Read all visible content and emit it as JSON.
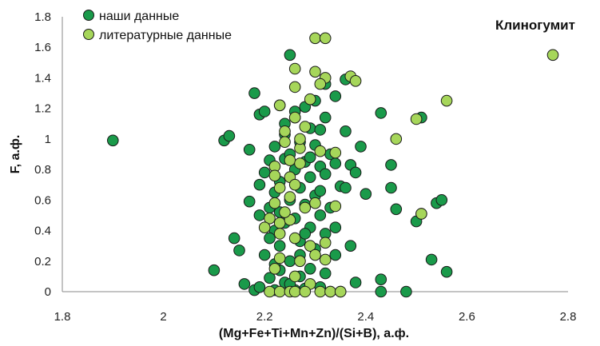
{
  "chart_data": {
    "type": "scatter",
    "title": "Клиногумит",
    "xlabel": "(Mg+Fe+Ti+Mn+Zn)/(Si+B), а.ф.",
    "ylabel": "F, а.ф.",
    "xlim": [
      1.8,
      2.8
    ],
    "ylim": [
      0,
      1.8
    ],
    "xticks": [
      "1.8",
      "2",
      "2.2",
      "2.4",
      "2.6",
      "2.8"
    ],
    "yticks": [
      "0",
      "0.2",
      "0.4",
      "0.6",
      "0.8",
      "1",
      "1.2",
      "1.4",
      "1.6",
      "1.8"
    ],
    "xtick_values": [
      1.8,
      2.0,
      2.2,
      2.4,
      2.6,
      2.8
    ],
    "ytick_values": [
      0,
      0.2,
      0.4,
      0.6,
      0.8,
      1.0,
      1.2,
      1.4,
      1.6,
      1.8
    ],
    "grid": false,
    "legend_position": "top-left",
    "colors": {
      "series1": "#1a9a4a",
      "series2": "#a6d65a",
      "outline": "#1a1a1a"
    },
    "series": [
      {
        "name": "наши данные",
        "points": [
          [
            1.9,
            0.99
          ],
          [
            2.1,
            0.14
          ],
          [
            2.12,
            0.99
          ],
          [
            2.13,
            1.02
          ],
          [
            2.14,
            0.35
          ],
          [
            2.15,
            0.27
          ],
          [
            2.16,
            0.05
          ],
          [
            2.17,
            0.59
          ],
          [
            2.17,
            0.93
          ],
          [
            2.18,
            1.3
          ],
          [
            2.18,
            0.01
          ],
          [
            2.19,
            1.16
          ],
          [
            2.19,
            0.5
          ],
          [
            2.19,
            0.03
          ],
          [
            2.2,
            0.78
          ],
          [
            2.2,
            0.24
          ],
          [
            2.2,
            1.18
          ],
          [
            2.21,
            0.86
          ],
          [
            2.21,
            0.09
          ],
          [
            2.21,
            0.55
          ],
          [
            2.22,
            0.95
          ],
          [
            2.22,
            0.65
          ],
          [
            2.22,
            0.4
          ],
          [
            2.22,
            0.01
          ],
          [
            2.23,
            1.22
          ],
          [
            2.23,
            0.72
          ],
          [
            2.23,
            0.3
          ],
          [
            2.23,
            0.14
          ],
          [
            2.24,
            1.03
          ],
          [
            2.24,
            0.87
          ],
          [
            2.24,
            0.45
          ],
          [
            2.24,
            0.06
          ],
          [
            2.25,
            1.55
          ],
          [
            2.25,
            0.9
          ],
          [
            2.25,
            0.6
          ],
          [
            2.25,
            0.2
          ],
          [
            2.26,
            1.14
          ],
          [
            2.26,
            0.8
          ],
          [
            2.26,
            0.48
          ],
          [
            2.26,
            0.01
          ],
          [
            2.27,
            0.98
          ],
          [
            2.27,
            0.68
          ],
          [
            2.27,
            0.33
          ],
          [
            2.27,
            0.1
          ],
          [
            2.28,
            1.21
          ],
          [
            2.28,
            0.85
          ],
          [
            2.28,
            0.57
          ],
          [
            2.28,
            0.02
          ],
          [
            2.29,
            1.07
          ],
          [
            2.29,
            0.75
          ],
          [
            2.29,
            0.42
          ],
          [
            2.29,
            0.15
          ],
          [
            2.3,
            1.25
          ],
          [
            2.3,
            0.96
          ],
          [
            2.3,
            0.63
          ],
          [
            2.3,
            0.28
          ],
          [
            2.31,
            1.06
          ],
          [
            2.31,
            0.82
          ],
          [
            2.31,
            0.5
          ],
          [
            2.31,
            0.03
          ],
          [
            2.32,
            1.14
          ],
          [
            2.32,
            0.77
          ],
          [
            2.32,
            0.38
          ],
          [
            2.32,
            0.12
          ],
          [
            2.33,
            0.9
          ],
          [
            2.33,
            0.55
          ],
          [
            2.33,
            0.0
          ],
          [
            2.34,
            1.28
          ],
          [
            2.34,
            0.84
          ],
          [
            2.34,
            0.42
          ],
          [
            2.35,
            0.69
          ],
          [
            2.35,
            0.0
          ],
          [
            2.36,
            1.05
          ],
          [
            2.36,
            0.68
          ],
          [
            2.37,
            0.83
          ],
          [
            2.37,
            0.3
          ],
          [
            2.38,
            0.78
          ],
          [
            2.38,
            0.06
          ],
          [
            2.39,
            0.95
          ],
          [
            2.4,
            0.64
          ],
          [
            2.43,
            1.17
          ],
          [
            2.43,
            0.08
          ],
          [
            2.43,
            0.0
          ],
          [
            2.45,
            0.83
          ],
          [
            2.45,
            0.68
          ],
          [
            2.46,
            0.54
          ],
          [
            2.48,
            0.0
          ],
          [
            2.5,
            0.46
          ],
          [
            2.51,
            1.14
          ],
          [
            2.51,
            0.51
          ],
          [
            2.53,
            0.21
          ],
          [
            2.54,
            0.58
          ],
          [
            2.55,
            0.6
          ],
          [
            2.56,
            0.13
          ],
          [
            2.32,
            1.36
          ],
          [
            2.36,
            1.39
          ],
          [
            2.24,
            1.1
          ],
          [
            2.21,
            0.35
          ],
          [
            2.27,
            0.24
          ],
          [
            2.29,
            0.88
          ],
          [
            2.34,
            0.24
          ],
          [
            2.23,
            0.52
          ],
          [
            2.19,
            0.7
          ],
          [
            2.25,
            0.05
          ],
          [
            2.28,
            0.38
          ],
          [
            2.31,
            0.66
          ],
          [
            2.26,
            1.18
          ],
          [
            2.22,
            0.18
          ]
        ]
      },
      {
        "name": "литературные данные",
        "points": [
          [
            2.3,
            1.66
          ],
          [
            2.32,
            1.66
          ],
          [
            2.26,
            1.46
          ],
          [
            2.3,
            1.44
          ],
          [
            2.32,
            1.4
          ],
          [
            2.37,
            1.41
          ],
          [
            2.38,
            1.38
          ],
          [
            2.31,
            1.36
          ],
          [
            2.26,
            1.34
          ],
          [
            2.29,
            1.26
          ],
          [
            2.23,
            1.22
          ],
          [
            2.24,
            1.05
          ],
          [
            2.26,
            1.14
          ],
          [
            2.24,
            0.98
          ],
          [
            2.27,
            0.94
          ],
          [
            2.27,
            1.0
          ],
          [
            2.31,
            0.92
          ],
          [
            2.25,
            0.86
          ],
          [
            2.22,
            0.82
          ],
          [
            2.27,
            0.84
          ],
          [
            2.22,
            0.76
          ],
          [
            2.25,
            0.75
          ],
          [
            2.26,
            0.7
          ],
          [
            2.23,
            0.68
          ],
          [
            2.25,
            0.62
          ],
          [
            2.22,
            0.58
          ],
          [
            2.28,
            0.55
          ],
          [
            2.3,
            0.58
          ],
          [
            2.21,
            0.48
          ],
          [
            2.23,
            0.45
          ],
          [
            2.25,
            0.47
          ],
          [
            2.2,
            0.42
          ],
          [
            2.23,
            0.38
          ],
          [
            2.26,
            0.35
          ],
          [
            2.29,
            0.3
          ],
          [
            2.32,
            0.32
          ],
          [
            2.3,
            0.24
          ],
          [
            2.23,
            0.22
          ],
          [
            2.27,
            0.2
          ],
          [
            2.32,
            0.21
          ],
          [
            2.22,
            0.15
          ],
          [
            2.26,
            0.1
          ],
          [
            2.29,
            0.05
          ],
          [
            2.21,
            0.0
          ],
          [
            2.23,
            0.0
          ],
          [
            2.25,
            0.0
          ],
          [
            2.26,
            0.0
          ],
          [
            2.28,
            0.0
          ],
          [
            2.31,
            0.0
          ],
          [
            2.33,
            0.0
          ],
          [
            2.35,
            0.0
          ],
          [
            2.34,
            0.91
          ],
          [
            2.34,
            0.56
          ],
          [
            2.46,
            1.0
          ],
          [
            2.5,
            1.13
          ],
          [
            2.51,
            0.51
          ],
          [
            2.56,
            1.25
          ],
          [
            2.77,
            1.55
          ],
          [
            2.28,
            1.08
          ],
          [
            2.24,
            0.52
          ]
        ]
      }
    ]
  }
}
